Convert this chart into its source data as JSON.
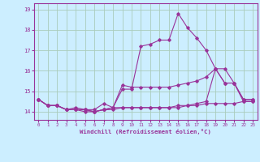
{
  "xlabel": "Windchill (Refroidissement éolien,°C)",
  "bg_color": "#cceeff",
  "grid_color": "#aaccbb",
  "line_color": "#993399",
  "xlim": [
    -0.5,
    23.5
  ],
  "ylim": [
    13.6,
    19.3
  ],
  "yticks": [
    14,
    15,
    16,
    17,
    18,
    19
  ],
  "xticks": [
    0,
    1,
    2,
    3,
    4,
    5,
    6,
    7,
    8,
    9,
    10,
    11,
    12,
    13,
    14,
    15,
    16,
    17,
    18,
    19,
    20,
    21,
    22,
    23
  ],
  "series": [
    [
      14.6,
      14.3,
      14.3,
      14.1,
      14.1,
      14.1,
      14.0,
      14.1,
      14.2,
      15.1,
      15.1,
      17.2,
      17.3,
      17.5,
      17.5,
      18.8,
      18.1,
      17.6,
      17.0,
      16.1,
      15.4,
      15.4,
      14.6,
      14.6
    ],
    [
      14.6,
      14.3,
      14.3,
      14.1,
      14.2,
      14.1,
      14.1,
      14.4,
      14.2,
      15.3,
      15.2,
      15.2,
      15.2,
      15.2,
      15.2,
      15.3,
      15.4,
      15.5,
      15.7,
      16.1,
      15.4,
      15.4,
      14.6,
      14.6
    ],
    [
      14.6,
      14.3,
      14.3,
      14.1,
      14.1,
      14.0,
      14.0,
      14.1,
      14.1,
      14.2,
      14.2,
      14.2,
      14.2,
      14.2,
      14.2,
      14.2,
      14.3,
      14.3,
      14.4,
      14.4,
      14.4,
      14.4,
      14.5,
      14.5
    ],
    [
      14.6,
      14.3,
      14.3,
      14.1,
      14.1,
      14.1,
      14.0,
      14.1,
      14.2,
      14.2,
      14.2,
      14.2,
      14.2,
      14.2,
      14.2,
      14.3,
      14.3,
      14.4,
      14.5,
      16.1,
      16.1,
      15.4,
      14.5,
      14.5
    ]
  ]
}
